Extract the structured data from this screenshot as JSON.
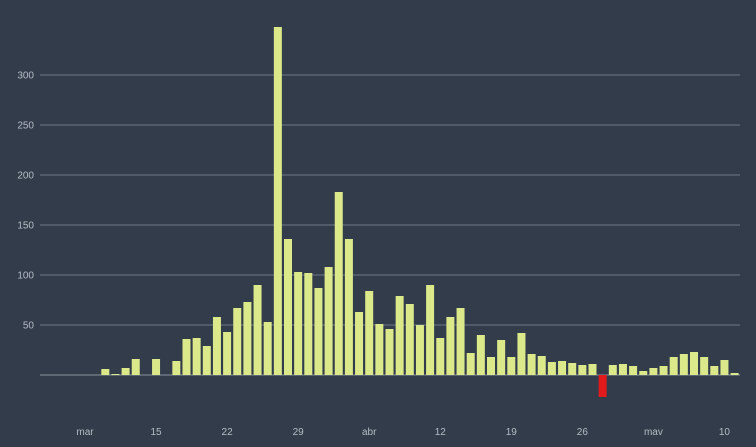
{
  "chart_data": {
    "type": "bar",
    "title": "",
    "xlabel": "",
    "ylabel": "",
    "ylim": [
      -22,
      350
    ],
    "yticks": [
      50,
      100,
      150,
      200,
      250,
      300
    ],
    "grid": true,
    "x_start_label": "mar",
    "xtick_labels": [
      {
        "label": "mar",
        "index": 0
      },
      {
        "label": "15",
        "index": 7
      },
      {
        "label": "22",
        "index": 14
      },
      {
        "label": "29",
        "index": 21
      },
      {
        "label": "abr",
        "index": 28
      },
      {
        "label": "12",
        "index": 35
      },
      {
        "label": "19",
        "index": 42
      },
      {
        "label": "26",
        "index": 49
      },
      {
        "label": "mav",
        "index": 56
      },
      {
        "label": "10",
        "index": 63
      }
    ],
    "values": [
      0,
      0,
      6,
      1,
      7,
      16,
      0,
      16,
      0,
      14,
      36,
      37,
      29,
      58,
      43,
      67,
      73,
      90,
      53,
      348,
      136,
      103,
      102,
      87,
      108,
      183,
      136,
      63,
      84,
      51,
      46,
      79,
      71,
      50,
      90,
      37,
      58,
      67,
      22,
      40,
      18,
      35,
      18,
      42,
      21,
      19,
      13,
      14,
      12,
      10,
      11,
      -22,
      10,
      11,
      9,
      4,
      7,
      9,
      18,
      21,
      23,
      18,
      9,
      15,
      2
    ],
    "colors": {
      "positive": "#dce98b",
      "negative": "#e31a1c",
      "background": "#323c4a",
      "grid": "#6f7986",
      "text": "#b4bcc6"
    }
  }
}
